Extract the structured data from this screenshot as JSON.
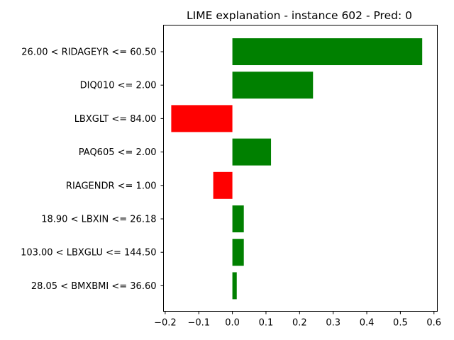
{
  "chart_data": {
    "type": "bar",
    "orientation": "horizontal",
    "title": "LIME explanation - instance 602 - Pred: 0",
    "xlabel": "",
    "ylabel": "",
    "xlim": [
      -0.205,
      0.61
    ],
    "xticks": [
      -0.2,
      -0.1,
      0.0,
      0.1,
      0.2,
      0.3,
      0.4,
      0.5,
      0.6
    ],
    "xtick_labels": [
      "−0.2",
      "−0.1",
      "0.0",
      "0.1",
      "0.2",
      "0.3",
      "0.4",
      "0.5",
      "0.6"
    ],
    "grid": false,
    "legend": "none",
    "categories": [
      "26.00 < RIDAGEYR <= 60.50",
      "DIQ010 <= 2.00",
      "LBXGLT <= 84.00",
      "PAQ605 <= 2.00",
      "RIAGENDR <= 1.00",
      "18.90 < LBXIN <= 26.18",
      "103.00 < LBXGLU <= 144.50",
      "28.05 < BMXBMI <= 36.60"
    ],
    "values": [
      0.565,
      0.24,
      -0.182,
      0.115,
      -0.057,
      0.034,
      0.034,
      0.013
    ],
    "colors": {
      "positive": "#008000",
      "negative": "#ff0000"
    }
  }
}
